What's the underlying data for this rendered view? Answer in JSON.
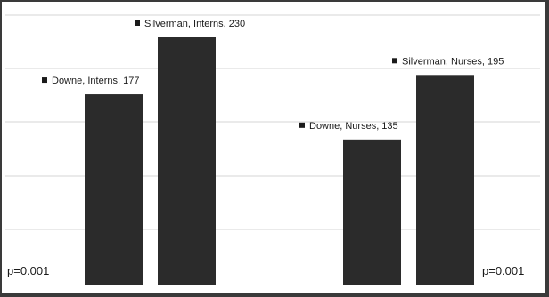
{
  "chart_data": {
    "type": "bar",
    "ylim": [
      0,
      280
    ],
    "grid": true,
    "bars": [
      {
        "label": "Downe, Interns, 177",
        "value": 177
      },
      {
        "label": "Silverman, Interns, 230",
        "value": 230
      },
      {
        "label": "Downe, Nurses, 135",
        "value": 135
      },
      {
        "label": "Silverman, Nurses, 195",
        "value": 195
      }
    ],
    "annotations": [
      "p=0.001",
      "p=0.001"
    ],
    "colors": {
      "bar": "#2b2b2b",
      "grid": "#d4d4d4",
      "frame": "#3a3a3a"
    }
  }
}
